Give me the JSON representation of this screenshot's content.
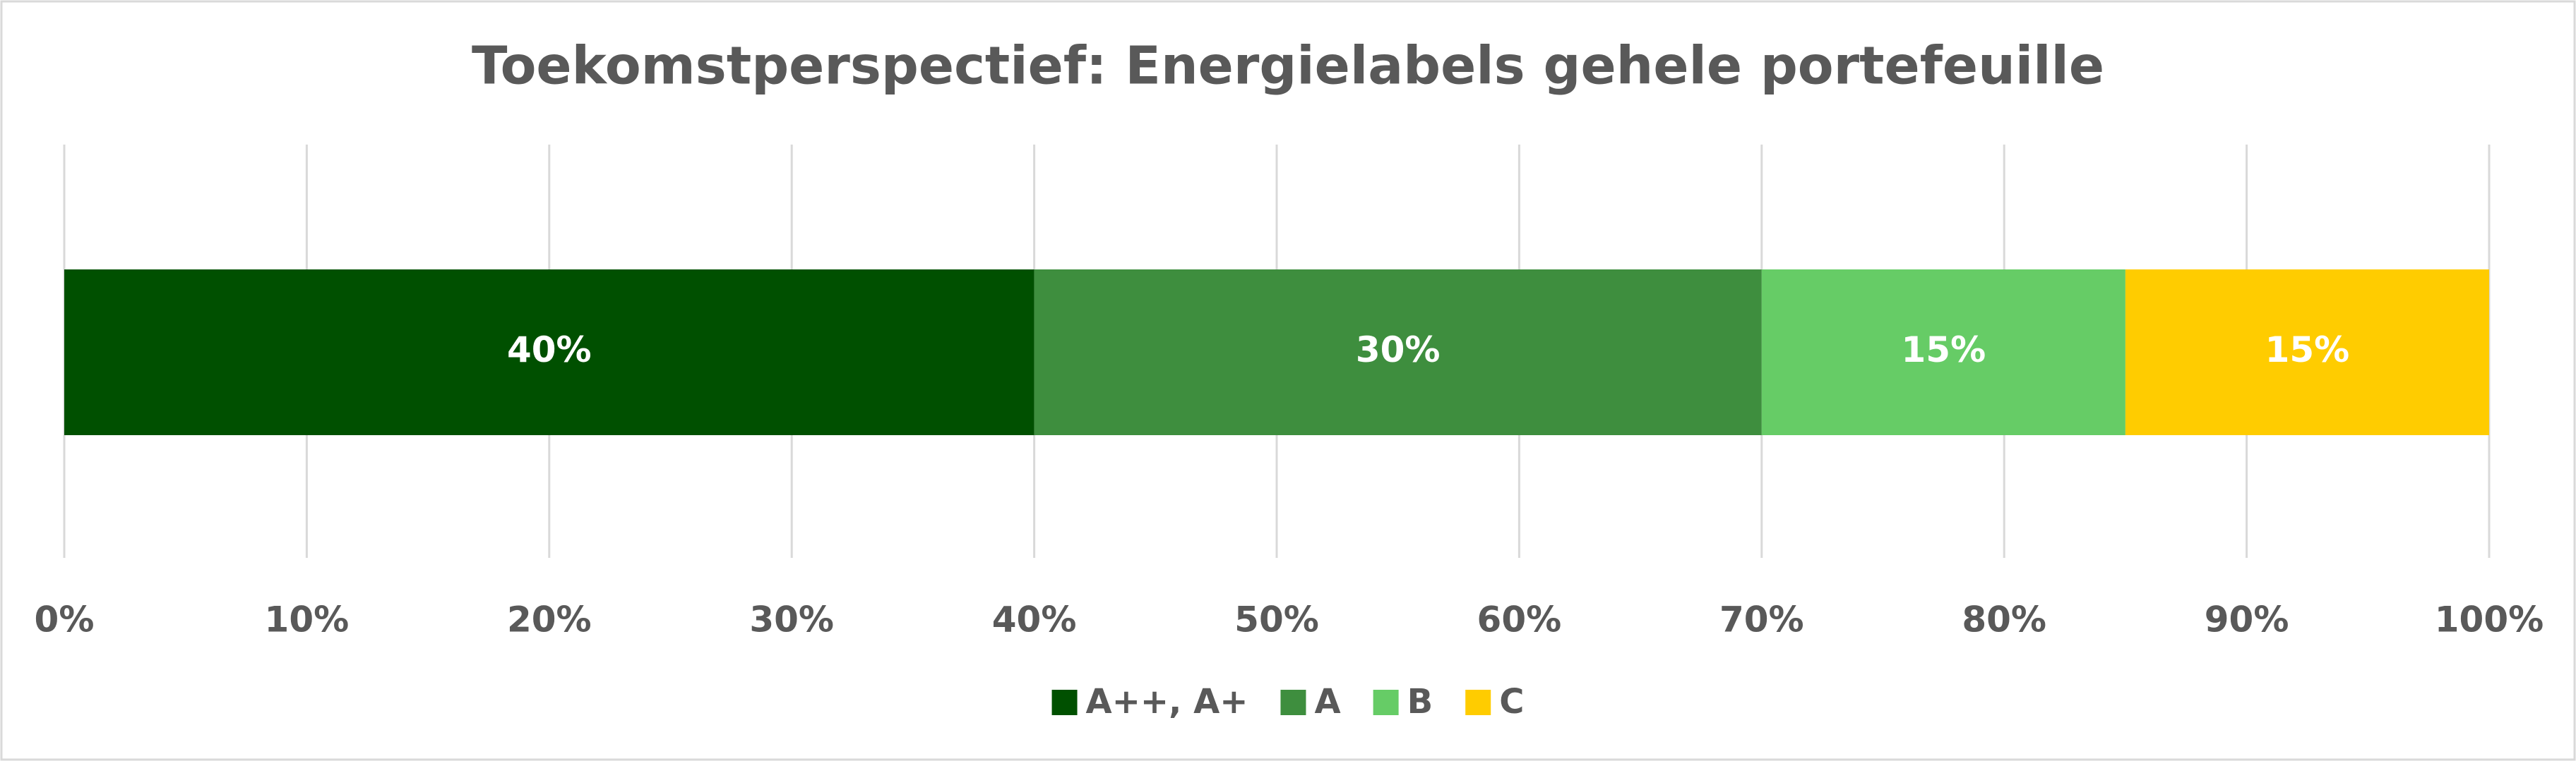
{
  "chart_data": {
    "type": "bar",
    "orientation": "horizontal",
    "stacked": true,
    "title": "Toekomstperspectief: Energielabels gehele portefeuille",
    "series": [
      {
        "name": "A++, A+",
        "color": "#005000",
        "values": [
          40
        ],
        "value_labels": [
          "40%"
        ]
      },
      {
        "name": "A",
        "color": "#3e8e3e",
        "values": [
          30
        ],
        "value_labels": [
          "30%"
        ]
      },
      {
        "name": "B",
        "color": "#66cc66",
        "values": [
          15
        ],
        "value_labels": [
          "15%"
        ]
      },
      {
        "name": "C",
        "color": "#ffcc00",
        "values": [
          15
        ],
        "value_labels": [
          "15%"
        ]
      }
    ],
    "xlim": [
      0,
      100
    ],
    "xticks": [
      {
        "value": 0,
        "label": "0%"
      },
      {
        "value": 10,
        "label": "10%"
      },
      {
        "value": 20,
        "label": "20%"
      },
      {
        "value": 30,
        "label": "30%"
      },
      {
        "value": 40,
        "label": "40%"
      },
      {
        "value": 50,
        "label": "50%"
      },
      {
        "value": 60,
        "label": "60%"
      },
      {
        "value": 70,
        "label": "70%"
      },
      {
        "value": 80,
        "label": "80%"
      },
      {
        "value": 90,
        "label": "90%"
      },
      {
        "value": 100,
        "label": "100%"
      }
    ],
    "grid": true,
    "legend": "bottom"
  }
}
